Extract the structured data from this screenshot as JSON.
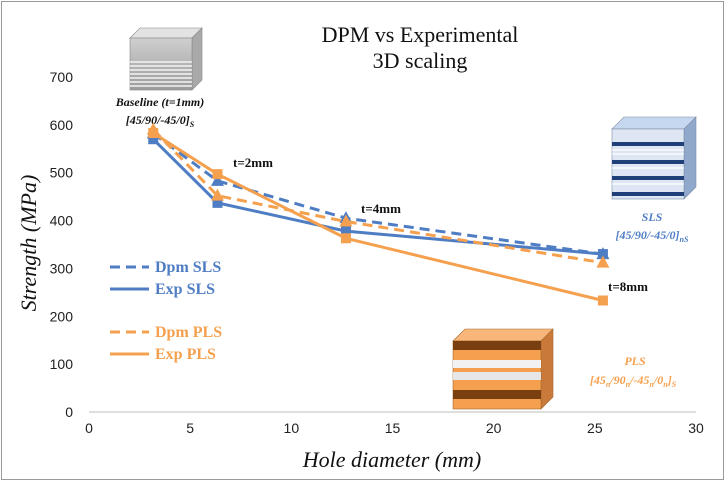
{
  "chart_data": {
    "type": "line",
    "title": [
      "DPM vs Experimental",
      "3D scaling"
    ],
    "xlabel": "Hole diameter (mm)",
    "ylabel": "Strength (MPa)",
    "xlim": [
      0,
      30
    ],
    "ylim": [
      0,
      700
    ],
    "xticks": [
      0,
      5,
      10,
      15,
      20,
      25,
      30
    ],
    "yticks": [
      0,
      100,
      200,
      300,
      400,
      500,
      600,
      700
    ],
    "grid": false,
    "legend_position": "left",
    "series": [
      {
        "name": "Dpm SLS",
        "color": "#4f7dc4",
        "dash": true,
        "marker": "triangle",
        "x": [
          3.175,
          6.35,
          12.7,
          25.4
        ],
        "y": [
          582,
          483,
          405,
          330
        ]
      },
      {
        "name": "Exp SLS",
        "color": "#4f7dc4",
        "dash": false,
        "marker": "square",
        "x": [
          3.175,
          6.35,
          12.7,
          25.4
        ],
        "y": [
          570,
          437,
          378,
          330
        ]
      },
      {
        "name": "Dpm PLS",
        "color": "#f5a04e",
        "dash": true,
        "marker": "triangle",
        "x": [
          3.175,
          6.35,
          12.7,
          25.4
        ],
        "y": [
          590,
          452,
          398,
          312
        ]
      },
      {
        "name": "Exp PLS",
        "color": "#f5a04e",
        "dash": false,
        "marker": "square",
        "x": [
          3.175,
          6.35,
          12.7,
          25.4
        ],
        "y": [
          583,
          497,
          363,
          233
        ]
      }
    ],
    "annotations": [
      {
        "text": "t=2mm"
      },
      {
        "text": "t=4mm"
      },
      {
        "text": "t=8mm"
      }
    ],
    "layups": {
      "baseline_label": "Baseline (t=1mm)",
      "baseline_main": "[45/90/-45/0]",
      "baseline_sub": "S",
      "sls_label": "SLS",
      "sls_main": "[45/90/-45/0]",
      "sls_sub": "nS",
      "pls_label": "PLS",
      "pls_main": "[45",
      "pls_sub1": "n",
      "pls_mid1": "/90",
      "pls_sub2": "n",
      "pls_mid2": "/-45",
      "pls_sub3": "n",
      "pls_mid3": "/0",
      "pls_sub4": "n",
      "pls_end": "]",
      "pls_sub5": "S"
    }
  }
}
